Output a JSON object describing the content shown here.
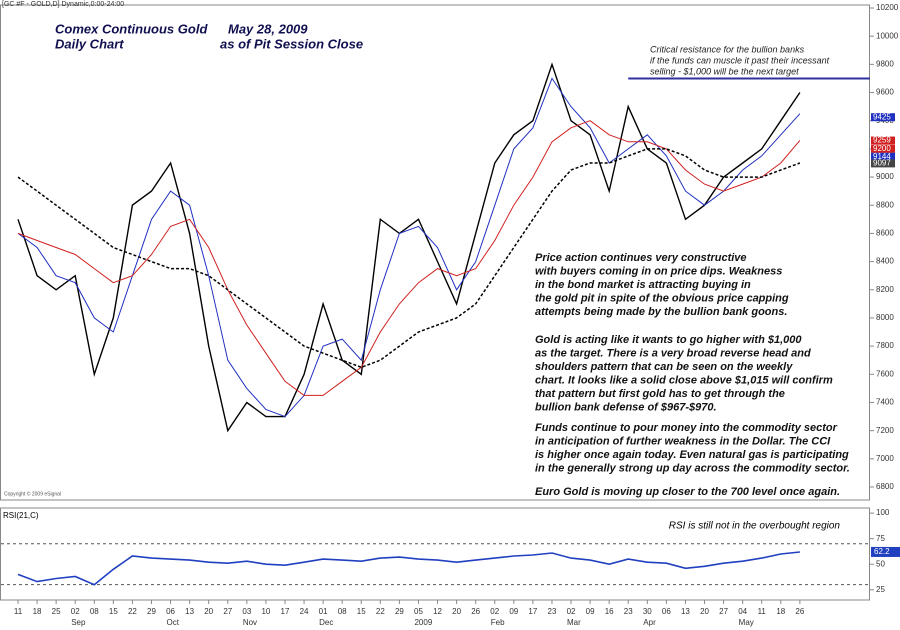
{
  "header": "[GC #F - GOLD,D] Dynamic,0:00-24:00",
  "copyright": "Copyright © 2009 eSignal",
  "chart_data": [
    {
      "type": "line",
      "title": "Comex Continuous Gold",
      "date": "May 28, 2009",
      "subtitle": "Daily Chart",
      "note": "as of Pit Session Close",
      "categories": [
        "11",
        "18",
        "25",
        "02",
        "08",
        "15",
        "22",
        "29",
        "06",
        "13",
        "20",
        "27",
        "03",
        "10",
        "17",
        "24",
        "01",
        "08",
        "15",
        "22",
        "29",
        "05",
        "12",
        "20",
        "26",
        "02",
        "09",
        "17",
        "23",
        "02",
        "09",
        "16",
        "23",
        "30",
        "06",
        "13",
        "20",
        "27",
        "04",
        "11",
        "18",
        "26"
      ],
      "x_groups": [
        {
          "label": "Sep",
          "start": 3
        },
        {
          "label": "Oct",
          "start": 8
        },
        {
          "label": "Nov",
          "start": 12
        },
        {
          "label": "Dec",
          "start": 16
        },
        {
          "label": "2009",
          "start": 21
        },
        {
          "label": "Feb",
          "start": 25
        },
        {
          "label": "Mar",
          "start": 29
        },
        {
          "label": "Apr",
          "start": 33
        },
        {
          "label": "May",
          "start": 38
        }
      ],
      "series": [
        {
          "color": "#000000",
          "width": 1.4,
          "values": [
            8700,
            8300,
            8200,
            8300,
            7600,
            8000,
            8800,
            8900,
            9100,
            8600,
            7800,
            7200,
            7400,
            7300,
            7300,
            7600,
            8100,
            7700,
            7600,
            8700,
            8600,
            8700,
            8400,
            8100,
            8600,
            9100,
            9300,
            9400,
            9800,
            9400,
            9300,
            8900,
            9500,
            9200,
            9100,
            8700,
            8800,
            9000,
            9100,
            9200,
            9400,
            9600
          ]
        },
        {
          "color": "#2030c0",
          "width": 1,
          "values": [
            8600,
            8500,
            8300,
            8250,
            8000,
            7900,
            8300,
            8700,
            8900,
            8800,
            8300,
            7700,
            7500,
            7350,
            7300,
            7450,
            7800,
            7850,
            7700,
            8200,
            8600,
            8650,
            8500,
            8200,
            8400,
            8800,
            9200,
            9350,
            9700,
            9500,
            9350,
            9100,
            9200,
            9300,
            9150,
            8900,
            8800,
            8900,
            9050,
            9150,
            9300,
            9450
          ]
        },
        {
          "color": "#d02020",
          "width": 1,
          "values": [
            8600,
            8550,
            8500,
            8450,
            8350,
            8250,
            8300,
            8450,
            8650,
            8700,
            8500,
            8200,
            7950,
            7750,
            7550,
            7450,
            7450,
            7550,
            7650,
            7900,
            8100,
            8250,
            8350,
            8300,
            8350,
            8550,
            8800,
            9000,
            9250,
            9350,
            9400,
            9300,
            9250,
            9250,
            9200,
            9050,
            8950,
            8900,
            8950,
            9000,
            9100,
            9260
          ]
        },
        {
          "color": "#000000",
          "width": 1.5,
          "dash": "3,2",
          "values": [
            9000,
            8900,
            8800,
            8700,
            8600,
            8500,
            8450,
            8400,
            8350,
            8350,
            8300,
            8200,
            8100,
            8000,
            7900,
            7800,
            7750,
            7700,
            7650,
            7700,
            7800,
            7900,
            7950,
            8000,
            8100,
            8300,
            8500,
            8700,
            8900,
            9050,
            9100,
            9100,
            9150,
            9200,
            9200,
            9150,
            9050,
            9000,
            9000,
            9000,
            9050,
            9100
          ]
        }
      ],
      "ylim": [
        6800,
        10200
      ],
      "yticks": [
        6800,
        7000,
        7200,
        7400,
        7600,
        7800,
        8000,
        8200,
        8400,
        8600,
        8800,
        9000,
        9200,
        9400,
        9600,
        9800,
        10000,
        10200
      ],
      "price_markers": [
        {
          "value": 9425,
          "color": "#2030c0"
        },
        {
          "value": 9259,
          "color": "#d02020"
        },
        {
          "value": 9200,
          "color": "#d02020"
        },
        {
          "value": 9144,
          "color": "#2030c0"
        },
        {
          "value": 9097,
          "color": "#444444"
        }
      ],
      "resistance": {
        "value": 9700,
        "start": 32,
        "color": "#3030a0",
        "text": [
          "Critical resistance for the bullion banks",
          "if the funds can muscle it past their incessant",
          "selling - $1,000 will be the next target"
        ]
      },
      "commentary": [
        [
          "Price action continues very constructive",
          "with buyers coming in on price dips. Weakness",
          "in the bond market is attracting buying in",
          "the gold pit in spite of the obvious price capping",
          "attempts being made by the bullion bank goons."
        ],
        [
          "Gold is acting like it wants to go higher with $1,000",
          "as the target. There is a very broad reverse head and",
          "shoulders pattern that can be seen on the weekly",
          "chart. It looks like a solid close above $1,015 will confirm",
          "that pattern but first gold has to get through the",
          "bullion bank defense of $967-$970."
        ],
        [
          "Funds continue to pour money into the commodity sector",
          "in anticipation of further weakness in the Dollar. The CCI",
          "is higher once again today. Even natural gas is participating",
          "in the generally strong up day across the commodity sector."
        ],
        [
          "Euro Gold is moving up closer to the 700 level once again."
        ]
      ]
    },
    {
      "type": "line",
      "title": "RSI(21,C)",
      "annotation": "RSI is still not in the overbought region",
      "series": [
        {
          "color": "#2040c0",
          "width": 1.6,
          "values": [
            40,
            33,
            36,
            38,
            30,
            45,
            58,
            56,
            55,
            54,
            52,
            51,
            53,
            50,
            49,
            52,
            55,
            54,
            53,
            56,
            57,
            55,
            54,
            52,
            54,
            56,
            58,
            59,
            61,
            56,
            54,
            50,
            55,
            52,
            51,
            46,
            48,
            51,
            53,
            56,
            60,
            62
          ]
        }
      ],
      "last_label": "62.2",
      "ylim": [
        15,
        105
      ],
      "yticks": [
        25,
        50,
        75,
        100
      ],
      "levels": [
        70,
        30
      ]
    }
  ]
}
